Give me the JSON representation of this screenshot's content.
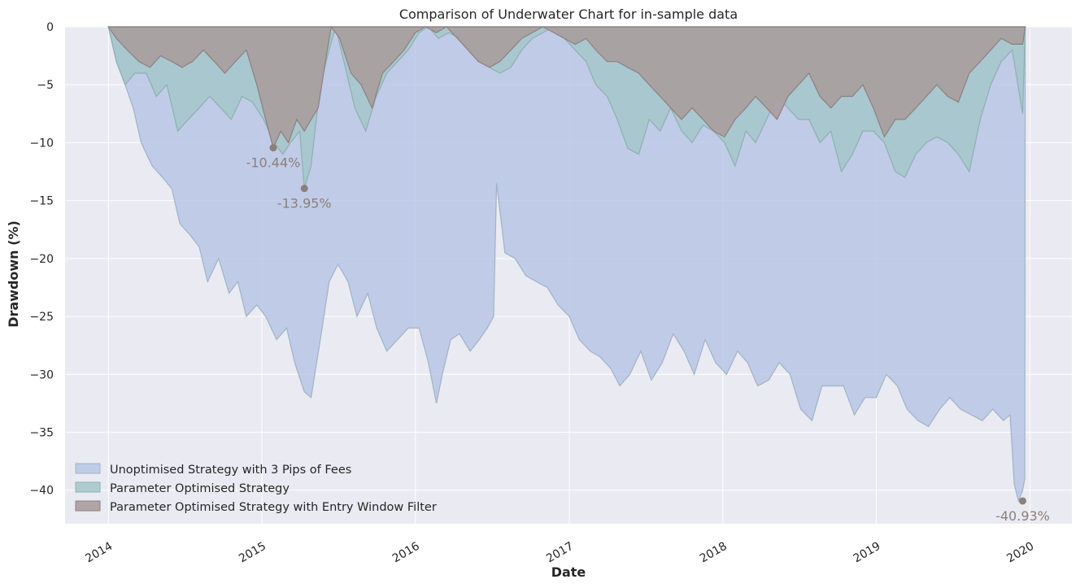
{
  "chart_data": {
    "type": "area",
    "title": "Comparison of Underwater Chart for in-sample data",
    "xlabel": "Date",
    "ylabel": "Drawdown (%)",
    "x_ticks": [
      "2014",
      "2015",
      "2016",
      "2017",
      "2018",
      "2019",
      "2020"
    ],
    "y_ticks": [
      "0",
      "−5",
      "−10",
      "−15",
      "−20",
      "−25",
      "−30",
      "−35",
      "−40"
    ],
    "xlim": [
      "2013-09-20",
      "2020-04-10"
    ],
    "ylim": [
      -42.9,
      0
    ],
    "grid": true,
    "legend_position": "lower-left",
    "colors": {
      "background": "#eaeaf2",
      "grid": "#ffffff",
      "series1": "#b8c6e6",
      "series2": "#a3c7c9",
      "series3": "#a99d9e",
      "annotation": "#8a8078"
    },
    "series": [
      {
        "name": "Unoptimised Strategy with 3 Pips of Fees",
        "x": [
          "2014-01-01",
          "2014-01-20",
          "2014-02-10",
          "2014-03-01",
          "2014-03-20",
          "2014-04-15",
          "2014-05-10",
          "2014-06-01",
          "2014-06-20",
          "2014-07-15",
          "2014-08-05",
          "2014-08-25",
          "2014-09-20",
          "2014-10-15",
          "2014-11-05",
          "2014-11-25",
          "2014-12-20",
          "2015-01-10",
          "2015-02-05",
          "2015-03-01",
          "2015-03-20",
          "2015-04-12",
          "2015-04-28",
          "2015-05-20",
          "2015-06-10",
          "2015-07-01",
          "2015-07-25",
          "2015-08-15",
          "2015-09-10",
          "2015-10-01",
          "2015-10-25",
          "2015-11-20",
          "2015-12-15",
          "2016-01-10",
          "2016-02-01",
          "2016-02-20",
          "2016-03-05",
          "2016-03-25",
          "2016-04-15",
          "2016-05-10",
          "2016-06-01",
          "2016-06-20",
          "2016-07-05",
          "2016-07-12",
          "2016-08-01",
          "2016-08-25",
          "2016-09-20",
          "2016-10-15",
          "2016-11-10",
          "2016-12-05",
          "2017-01-01",
          "2017-01-25",
          "2017-02-20",
          "2017-03-15",
          "2017-04-10",
          "2017-05-01",
          "2017-05-25",
          "2017-06-20",
          "2017-07-15",
          "2017-08-10",
          "2017-09-05",
          "2017-10-01",
          "2017-10-25",
          "2017-11-20",
          "2017-12-15",
          "2018-01-10",
          "2018-02-05",
          "2018-03-01",
          "2018-03-25",
          "2018-04-20",
          "2018-05-15",
          "2018-06-10",
          "2018-07-05",
          "2018-08-01",
          "2018-08-25",
          "2018-09-20",
          "2018-10-15",
          "2018-11-10",
          "2018-12-05",
          "2019-01-01",
          "2019-01-25",
          "2019-02-20",
          "2019-03-15",
          "2019-04-10",
          "2019-05-05",
          "2019-06-01",
          "2019-06-25",
          "2019-07-20",
          "2019-08-15",
          "2019-09-10",
          "2019-10-05",
          "2019-10-30",
          "2019-11-15",
          "2019-11-25",
          "2019-12-05",
          "2019-12-15",
          "2019-12-20",
          "2019-12-21"
        ],
        "y": [
          0,
          -3,
          -5,
          -7,
          -10,
          -12,
          -13,
          -14,
          -17,
          -18,
          -19,
          -22,
          -20,
          -23,
          -22,
          -25,
          -24,
          -25,
          -27,
          -26,
          -29,
          -31.5,
          -32,
          -27,
          -22,
          -20.5,
          -22,
          -25,
          -23,
          -26,
          -28,
          -27,
          -26,
          -26,
          -29,
          -32.5,
          -30,
          -27,
          -26.5,
          -28,
          -27,
          -26,
          -25,
          -13.5,
          -19.5,
          -20,
          -21.5,
          -22,
          -22.5,
          -24,
          -25,
          -27,
          -28,
          -28.5,
          -29.5,
          -31,
          -30,
          -28,
          -30.5,
          -29,
          -26.5,
          -28,
          -30,
          -27,
          -29,
          -30,
          -28,
          -29,
          -31,
          -30.5,
          -29,
          -30,
          -33,
          -34,
          -31,
          -31,
          -31,
          -33.5,
          -32,
          -32,
          -30,
          -31,
          -33,
          -34,
          -34.5,
          -33,
          -32,
          -33,
          -33.5,
          -34,
          -33,
          -34,
          -33.5,
          -39.5,
          -40.93,
          -40,
          -39,
          0
        ]
      },
      {
        "name": "Parameter Optimised Strategy",
        "x": [
          "2014-01-01",
          "2014-01-20",
          "2014-02-10",
          "2014-03-05",
          "2014-04-01",
          "2014-04-25",
          "2014-05-20",
          "2014-06-15",
          "2014-07-10",
          "2014-08-05",
          "2014-08-30",
          "2014-09-25",
          "2014-10-20",
          "2014-11-15",
          "2014-12-10",
          "2015-01-05",
          "2015-01-30",
          "2015-02-20",
          "2015-03-10",
          "2015-04-01",
          "2015-04-12",
          "2015-04-28",
          "2015-05-20",
          "2015-06-10",
          "2015-06-25",
          "2015-07-15",
          "2015-08-10",
          "2015-09-05",
          "2015-09-30",
          "2015-10-25",
          "2015-11-20",
          "2015-12-15",
          "2016-01-10",
          "2016-02-01",
          "2016-02-25",
          "2016-03-20",
          "2016-04-15",
          "2016-05-10",
          "2016-06-01",
          "2016-06-25",
          "2016-07-20",
          "2016-08-15",
          "2016-09-10",
          "2016-10-05",
          "2016-10-30",
          "2016-11-25",
          "2016-12-20",
          "2017-01-15",
          "2017-02-10",
          "2017-03-05",
          "2017-04-01",
          "2017-04-25",
          "2017-05-20",
          "2017-06-15",
          "2017-07-10",
          "2017-08-05",
          "2017-08-30",
          "2017-09-25",
          "2017-10-20",
          "2017-11-15",
          "2017-12-10",
          "2018-01-05",
          "2018-01-30",
          "2018-02-25",
          "2018-03-20",
          "2018-04-15",
          "2018-05-10",
          "2018-06-05",
          "2018-06-30",
          "2018-07-25",
          "2018-08-20",
          "2018-09-15",
          "2018-10-10",
          "2018-11-05",
          "2018-11-30",
          "2018-12-25",
          "2019-01-20",
          "2019-02-15",
          "2019-03-10",
          "2019-04-05",
          "2019-04-30",
          "2019-05-25",
          "2019-06-20",
          "2019-07-15",
          "2019-08-10",
          "2019-09-05",
          "2019-09-30",
          "2019-10-25",
          "2019-11-20",
          "2019-12-15",
          "2019-12-21"
        ],
        "y": [
          0,
          -3,
          -5,
          -4,
          -4,
          -6,
          -5,
          -9,
          -8,
          -7,
          -6,
          -7,
          -8,
          -6,
          -6.5,
          -8,
          -10,
          -11,
          -10,
          -9,
          -13.95,
          -12,
          -5,
          -2,
          0,
          -3,
          -7,
          -9,
          -6,
          -4,
          -3,
          -2,
          -0.5,
          0,
          -1,
          -0.5,
          -1,
          -2,
          -3,
          -3.5,
          -4,
          -3.5,
          -2,
          -1,
          -0.5,
          0,
          -1,
          -2,
          -3,
          -5,
          -6,
          -8,
          -10.5,
          -11,
          -8,
          -9,
          -7,
          -9,
          -10,
          -8.5,
          -9,
          -10,
          -12,
          -9,
          -10,
          -8,
          -6,
          -7,
          -8,
          -8,
          -10,
          -9,
          -12.5,
          -11,
          -9,
          -9,
          -10,
          -12.5,
          -13,
          -11,
          -10,
          -9.5,
          -10,
          -11,
          -12.5,
          -8,
          -5,
          -3,
          -2,
          -7.5,
          0
        ]
      },
      {
        "name": "Parameter Optimised Strategy with Entry Window Filter",
        "x": [
          "2014-01-01",
          "2014-01-20",
          "2014-02-15",
          "2014-03-15",
          "2014-04-10",
          "2014-05-05",
          "2014-06-01",
          "2014-06-25",
          "2014-07-20",
          "2014-08-15",
          "2014-09-10",
          "2014-10-05",
          "2014-10-30",
          "2014-11-25",
          "2014-12-20",
          "2015-01-10",
          "2015-01-28",
          "2015-02-15",
          "2015-03-05",
          "2015-03-25",
          "2015-04-12",
          "2015-04-28",
          "2015-05-15",
          "2015-06-01",
          "2015-06-15",
          "2015-07-05",
          "2015-08-01",
          "2015-08-25",
          "2015-09-20",
          "2015-10-15",
          "2015-11-10",
          "2015-12-05",
          "2016-01-01",
          "2016-01-25",
          "2016-02-20",
          "2016-03-15",
          "2016-04-10",
          "2016-05-05",
          "2016-05-30",
          "2016-06-25",
          "2016-07-20",
          "2016-08-15",
          "2016-09-10",
          "2016-10-05",
          "2016-10-30",
          "2016-11-25",
          "2016-12-20",
          "2017-01-15",
          "2017-02-10",
          "2017-03-05",
          "2017-04-01",
          "2017-04-25",
          "2017-05-20",
          "2017-06-15",
          "2017-07-10",
          "2017-08-05",
          "2017-08-30",
          "2017-09-25",
          "2017-10-20",
          "2017-11-15",
          "2017-12-10",
          "2018-01-05",
          "2018-01-30",
          "2018-02-25",
          "2018-03-20",
          "2018-04-15",
          "2018-05-10",
          "2018-06-05",
          "2018-06-30",
          "2018-07-25",
          "2018-08-20",
          "2018-09-15",
          "2018-10-10",
          "2018-11-05",
          "2018-11-30",
          "2018-12-25",
          "2019-01-20",
          "2019-02-15",
          "2019-03-10",
          "2019-04-05",
          "2019-04-30",
          "2019-05-25",
          "2019-06-20",
          "2019-07-15",
          "2019-08-10",
          "2019-09-05",
          "2019-09-30",
          "2019-10-25",
          "2019-11-20",
          "2019-12-15",
          "2019-12-21"
        ],
        "y": [
          0,
          -1,
          -2,
          -3,
          -3.5,
          -2.5,
          -3,
          -3.5,
          -3,
          -2,
          -3,
          -4,
          -3,
          -2,
          -5,
          -8,
          -10.44,
          -9,
          -10,
          -8,
          -9,
          -8,
          -7,
          -3,
          0,
          -1,
          -4,
          -5,
          -7,
          -4,
          -3,
          -2,
          -0.5,
          0,
          -0.5,
          0,
          -1,
          -2,
          -3,
          -3.5,
          -3,
          -2,
          -1,
          -0.5,
          0,
          -0.5,
          -1,
          -1.5,
          -1,
          -2,
          -3,
          -3,
          -3.5,
          -4,
          -5,
          -6,
          -7,
          -8,
          -7,
          -8,
          -9,
          -9.5,
          -8,
          -7,
          -6,
          -7,
          -8,
          -6,
          -5,
          -4,
          -6,
          -7,
          -6,
          -6,
          -5,
          -7,
          -9.5,
          -8,
          -8,
          -7,
          -6,
          -5,
          -6,
          -6.5,
          -4,
          -3,
          -2,
          -1,
          -1.5,
          -1.5,
          0
        ]
      }
    ],
    "annotations": [
      {
        "label": "-10.44%",
        "x": "2015-01-28",
        "y": -10.44
      },
      {
        "label": "-13.95%",
        "x": "2015-04-12",
        "y": -13.95
      },
      {
        "label": "-40.93%",
        "x": "2019-12-15",
        "y": -40.93
      }
    ]
  }
}
